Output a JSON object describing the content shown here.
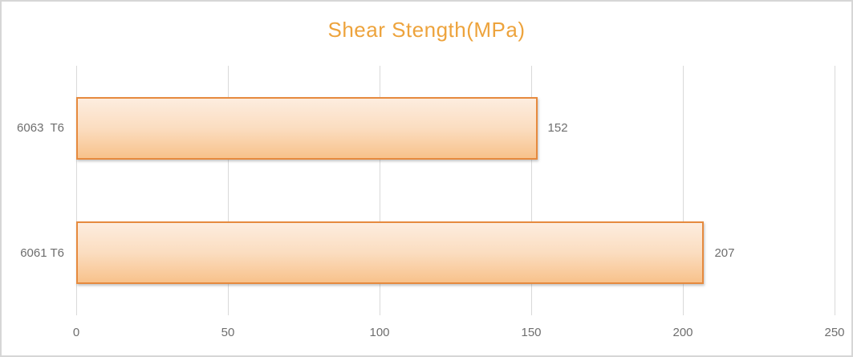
{
  "chart_data": {
    "type": "bar",
    "orientation": "horizontal",
    "title": "Shear Stength(MPa)",
    "categories": [
      "6063  T6",
      "6061 T6"
    ],
    "values": [
      152,
      207
    ],
    "data_labels": [
      "152",
      "207"
    ],
    "xlim": [
      0,
      250
    ],
    "x_ticks": [
      0,
      50,
      100,
      150,
      200,
      250
    ],
    "xlabel": "",
    "ylabel": "",
    "legend": "none",
    "grid": "vertical",
    "colors": {
      "title": "#EDA33C",
      "bar_border": "#E68A3E",
      "bar_fill_top": "#FDEDDF",
      "bar_fill_bottom": "#F8C28B",
      "gridline": "#D9D9D9",
      "label_text": "#6E6E6E",
      "chart_border": "#D6D6D6",
      "background": "#FFFFFF"
    }
  }
}
